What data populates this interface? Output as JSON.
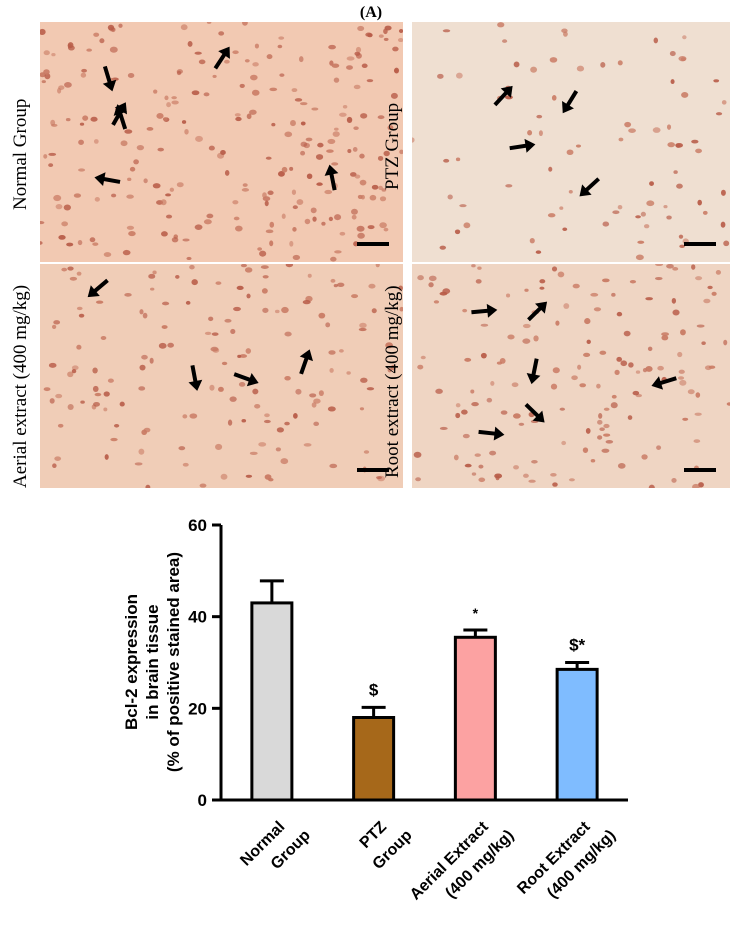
{
  "panel_label": "(A)",
  "micrographs": [
    {
      "label": "Normal Group",
      "tissue": "#f2c9b2",
      "cell_density": "high",
      "arrows": 6
    },
    {
      "label": "PTZ Group",
      "tissue": "#efdfd1",
      "cell_density": "low",
      "arrows": 4
    },
    {
      "label": "Aerial extract (400 mg/kg)",
      "tissue": "#f0cdb7",
      "cell_density": "medium",
      "arrows": 4
    },
    {
      "label": "Root extract (400 mg/kg)",
      "tissue": "#efd5c3",
      "cell_density": "medium",
      "arrows": 6
    }
  ],
  "chart_data": {
    "type": "bar",
    "categories": [
      [
        "Normal",
        "Group"
      ],
      [
        "PTZ",
        "Group"
      ],
      [
        "Aerial Extract",
        "(400 mg/kg)"
      ],
      [
        "Root Extract",
        "(400 mg/kg)"
      ]
    ],
    "values": [
      43,
      18,
      35.5,
      28.5
    ],
    "errors": [
      4.8,
      2.2,
      1.6,
      1.5
    ],
    "annotations": [
      "",
      "$",
      "*",
      "$*"
    ],
    "colors": [
      "#d9d9d9",
      "#a6681a",
      "#fca2a2",
      "#7fbcff"
    ],
    "ylabel": [
      "Bcl-2 expression",
      "in brain tissue",
      "(% of positive stained area)"
    ],
    "ylim": [
      0,
      60
    ],
    "yticks": [
      0,
      20,
      40,
      60
    ]
  }
}
